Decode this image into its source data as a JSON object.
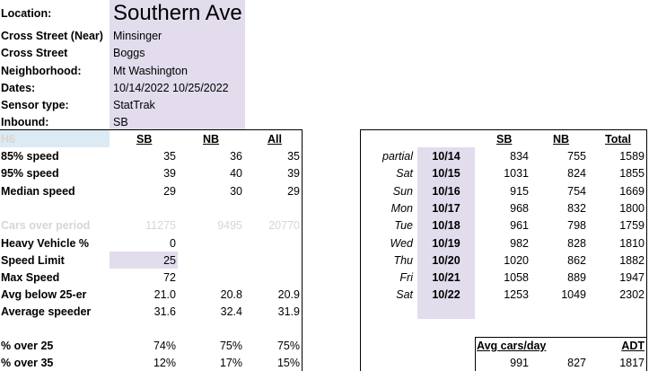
{
  "info": {
    "location_label": "Location:",
    "location_value": "Southern Ave",
    "cross_near_label": "Cross Street (Near)",
    "cross_near_value": "Minsinger",
    "cross_label": "Cross Street",
    "cross_value": "Boggs",
    "neighborhood_label": "Neighborhood:",
    "neighborhood_value": "Mt Washington",
    "dates_label": "Dates:",
    "dates_value": "10/14/2022 10/25/2022",
    "sensor_label": "Sensor type:",
    "sensor_value": "StatTrak",
    "inbound_label": "Inbound:",
    "inbound_value": "SB"
  },
  "stats": {
    "header": {
      "label": "H6",
      "col1": "SB",
      "col2": "NB",
      "col3": "All"
    },
    "rows": [
      {
        "label": "85% speed",
        "v1": "35",
        "v2": "36",
        "v3": "35"
      },
      {
        "label": "95% speed",
        "v1": "39",
        "v2": "40",
        "v3": "39"
      },
      {
        "label": "Median speed",
        "v1": "29",
        "v2": "30",
        "v3": "29"
      },
      {
        "label": "Cars over period",
        "v1": "11275",
        "v2": "9495",
        "v3": "20770"
      },
      {
        "label": "Heavy Vehicle %",
        "v1": "0",
        "v2": "",
        "v3": ""
      },
      {
        "label": "Speed Limit",
        "v1": "25",
        "v2": "",
        "v3": ""
      },
      {
        "label": "Max Speed",
        "v1": "72",
        "v2": "",
        "v3": ""
      },
      {
        "label": "Avg below 25-er",
        "v1": "21.0",
        "v2": "20.8",
        "v3": "20.9"
      },
      {
        "label": "Average speeder",
        "v1": "31.6",
        "v2": "32.4",
        "v3": "31.9"
      },
      {
        "label": "% over 25",
        "v1": "74%",
        "v2": "75%",
        "v3": "75%"
      },
      {
        "label": "% over 35",
        "v1": "12%",
        "v2": "17%",
        "v3": "15%"
      }
    ]
  },
  "daily": {
    "header": {
      "col1": "SB",
      "col2": "NB",
      "col3": "Total"
    },
    "rows": [
      {
        "day": "partial",
        "date": "10/14",
        "sb": "834",
        "nb": "755",
        "total": "1589"
      },
      {
        "day": "Sat",
        "date": "10/15",
        "sb": "1031",
        "nb": "824",
        "total": "1855"
      },
      {
        "day": "Sun",
        "date": "10/16",
        "sb": "915",
        "nb": "754",
        "total": "1669"
      },
      {
        "day": "Mon",
        "date": "10/17",
        "sb": "968",
        "nb": "832",
        "total": "1800"
      },
      {
        "day": "Tue",
        "date": "10/18",
        "sb": "961",
        "nb": "798",
        "total": "1759"
      },
      {
        "day": "Wed",
        "date": "10/19",
        "sb": "982",
        "nb": "828",
        "total": "1810"
      },
      {
        "day": "Thu",
        "date": "10/20",
        "sb": "1020",
        "nb": "862",
        "total": "1882"
      },
      {
        "day": "Fri",
        "date": "10/21",
        "sb": "1058",
        "nb": "889",
        "total": "1947"
      },
      {
        "day": "Sat",
        "date": "10/22",
        "sb": "1253",
        "nb": "1049",
        "total": "2302"
      }
    ]
  },
  "summary": {
    "avg_label": "Avg cars/day",
    "adt_label": "ADT",
    "sb": "991",
    "nb": "827",
    "adt": "1817"
  },
  "colors": {
    "highlight": "#e2dcec",
    "header_blue": "#dceaf3",
    "greyed": "#d6d6d6"
  }
}
